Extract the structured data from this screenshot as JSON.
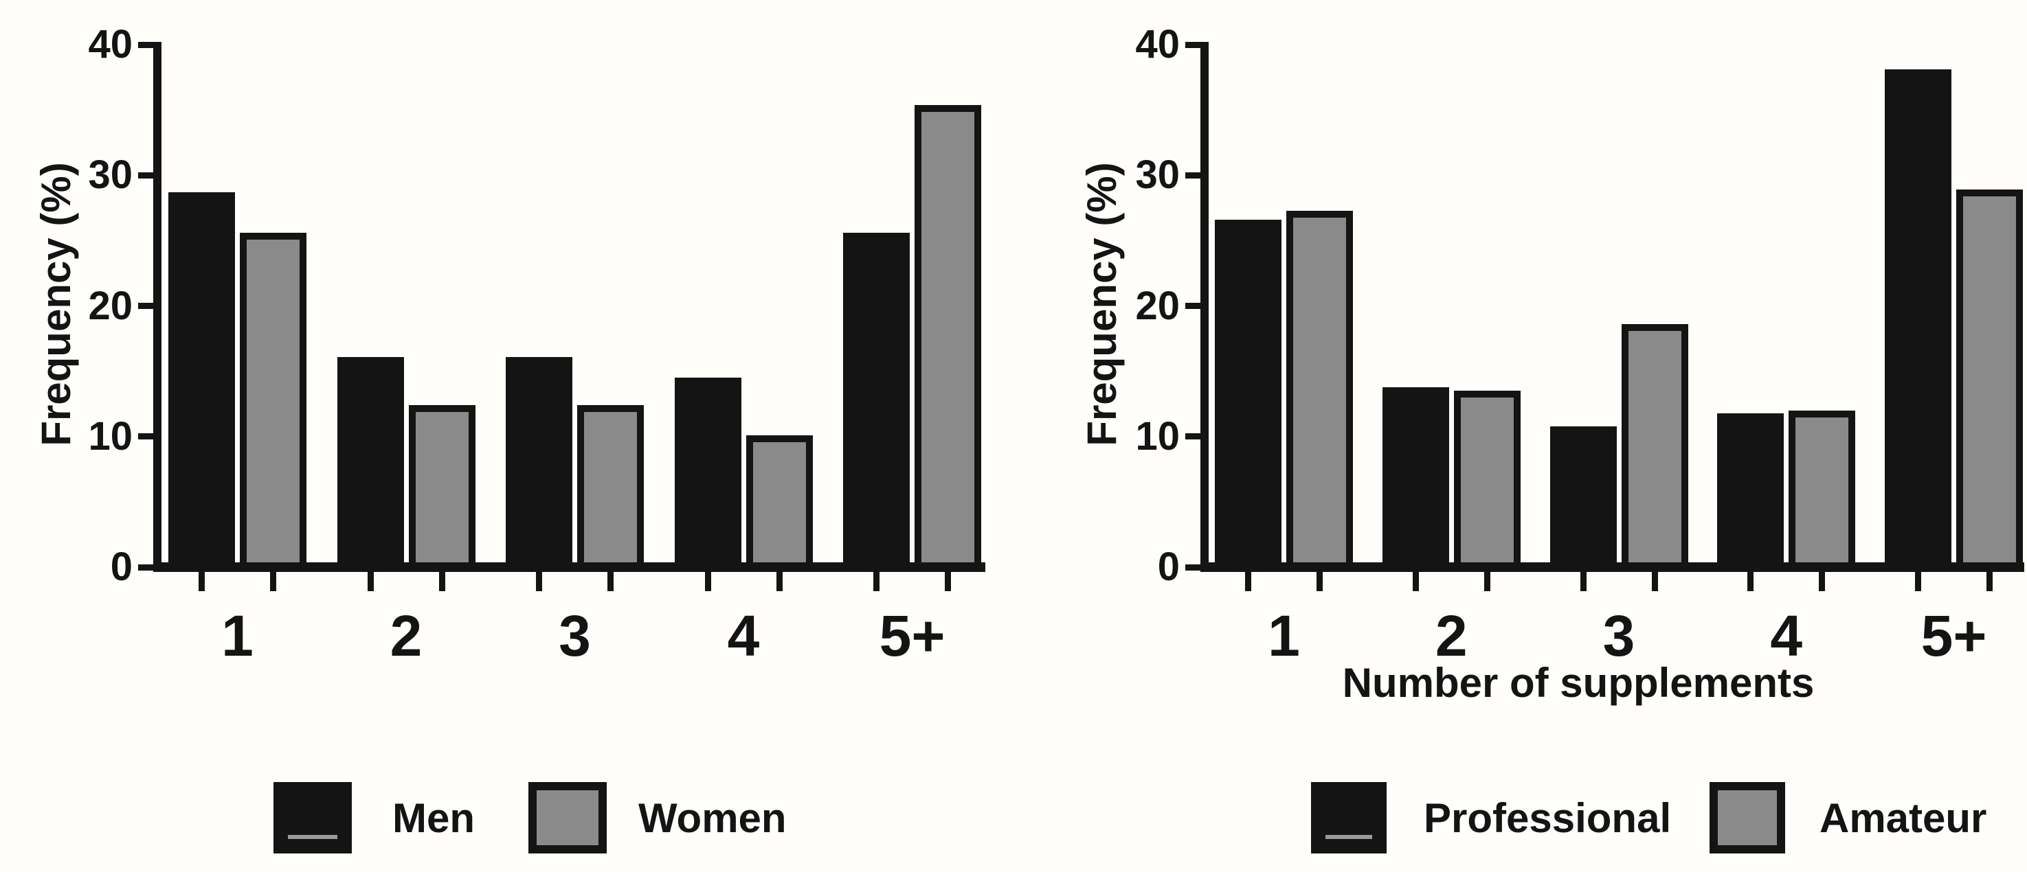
{
  "figure": {
    "background": "#fffefb",
    "colors": {
      "black_series": "#141414",
      "gray_series": "#8a8a8a",
      "outline": "#141414"
    }
  },
  "chart_data": [
    {
      "type": "bar",
      "title": "",
      "ylabel": "Frequency (%)",
      "xlabel": "",
      "ylim": [
        0,
        40
      ],
      "yticks": [
        "0",
        "10",
        "20",
        "30",
        "40"
      ],
      "categories": [
        "1",
        "2",
        "3",
        "4",
        "5+"
      ],
      "grid": false,
      "legend_position": "bottom",
      "series": [
        {
          "name": "Men",
          "color": "#141414",
          "values": [
            28.7,
            16.1,
            16.1,
            14.5,
            25.6
          ]
        },
        {
          "name": "Women",
          "color": "#8a8a8a",
          "values": [
            25.6,
            12.4,
            12.4,
            10.1,
            35.4
          ]
        }
      ]
    },
    {
      "type": "bar",
      "title": "",
      "ylabel": "Frequency (%)",
      "xlabel": "Number of supplements",
      "ylim": [
        0,
        40
      ],
      "yticks": [
        "0",
        "10",
        "20",
        "30",
        "40"
      ],
      "categories": [
        "1",
        "2",
        "3",
        "4",
        "5+"
      ],
      "grid": false,
      "legend_position": "bottom",
      "series": [
        {
          "name": "Professional",
          "color": "#141414",
          "values": [
            26.6,
            13.8,
            10.8,
            11.8,
            38.1
          ]
        },
        {
          "name": "Amateur",
          "color": "#8a8a8a",
          "values": [
            27.3,
            13.5,
            18.6,
            12.0,
            28.9
          ]
        }
      ]
    }
  ]
}
